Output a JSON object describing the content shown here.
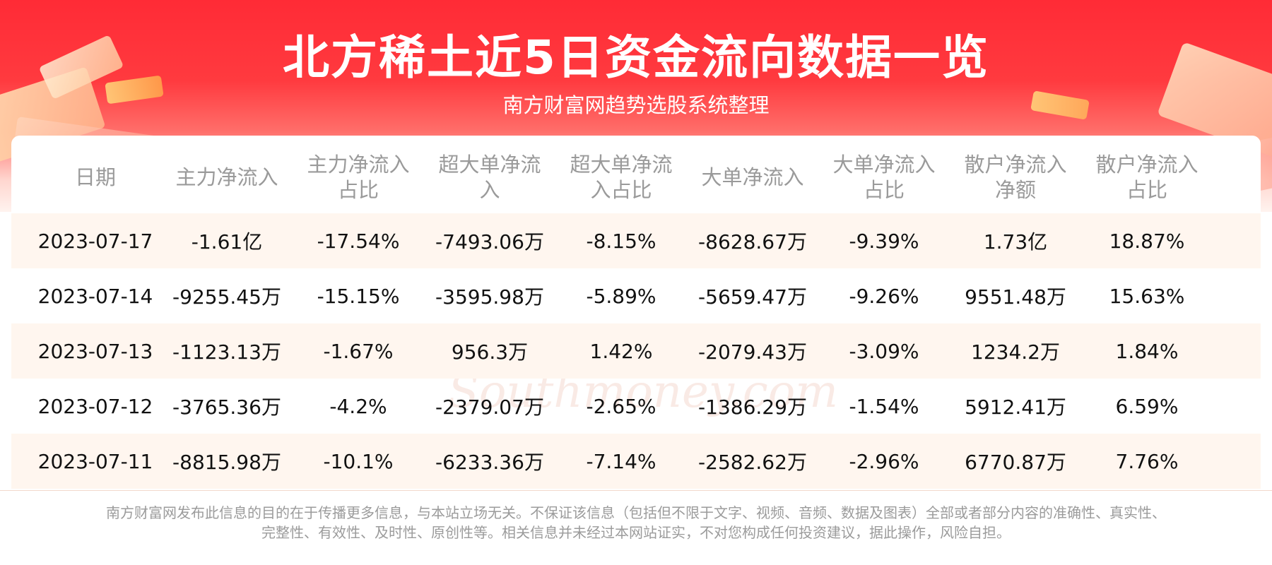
{
  "header": {
    "title": "北方稀土近5日资金流向数据一览",
    "subtitle": "南方财富网趋势选股系统整理"
  },
  "watermark": {
    "cn": "南方财富网",
    "en": "Southmoney.com"
  },
  "table": {
    "columns": [
      "日期",
      "主力净流入",
      "主力净流入占比",
      "超大单净流入",
      "超大单净流入占比",
      "大单净流入",
      "大单净流入占比",
      "散户净流入净额",
      "散户净流入占比"
    ],
    "header_lines": [
      [
        "日期"
      ],
      [
        "主力净流入"
      ],
      [
        "主力净流入",
        "占比"
      ],
      [
        "超大单净流",
        "入"
      ],
      [
        "超大单净流",
        "入占比"
      ],
      [
        "大单净流入"
      ],
      [
        "大单净流入",
        "占比"
      ],
      [
        "散户净流入",
        "净额"
      ],
      [
        "散户净流入",
        "占比"
      ]
    ],
    "rows": [
      [
        "2023-07-17",
        "-1.61亿",
        "-17.54%",
        "-7493.06万",
        "-8.15%",
        "-8628.67万",
        "-9.39%",
        "1.73亿",
        "18.87%"
      ],
      [
        "2023-07-14",
        "-9255.45万",
        "-15.15%",
        "-3595.98万",
        "-5.89%",
        "-5659.47万",
        "-9.26%",
        "9551.48万",
        "15.63%"
      ],
      [
        "2023-07-13",
        "-1123.13万",
        "-1.67%",
        "956.3万",
        "1.42%",
        "-2079.43万",
        "-3.09%",
        "1234.2万",
        "1.84%"
      ],
      [
        "2023-07-12",
        "-3765.36万",
        "-4.2%",
        "-2379.07万",
        "-2.65%",
        "-1386.29万",
        "-1.54%",
        "5912.41万",
        "6.59%"
      ],
      [
        "2023-07-11",
        "-8815.98万",
        "-10.1%",
        "-6233.36万",
        "-7.14%",
        "-2582.62万",
        "-2.96%",
        "6770.87万",
        "7.76%"
      ]
    ]
  },
  "footer": {
    "line1": "南方财富网发布此信息的目的在于传播更多信息，与本站立场无关。不保证该信息（包括但不限于文字、视频、音频、数据及图表）全部或者部分内容的准确性、真实性、",
    "line2": "完整性、有效性、及时性、原创性等。相关信息并未经过本网站证实，不对您构成任何投资建议，据此操作，风险自担。"
  },
  "colors": {
    "banner_red": "#ff2b36",
    "header_text": "#9a9a9a",
    "stripe": "#fff6ef"
  }
}
